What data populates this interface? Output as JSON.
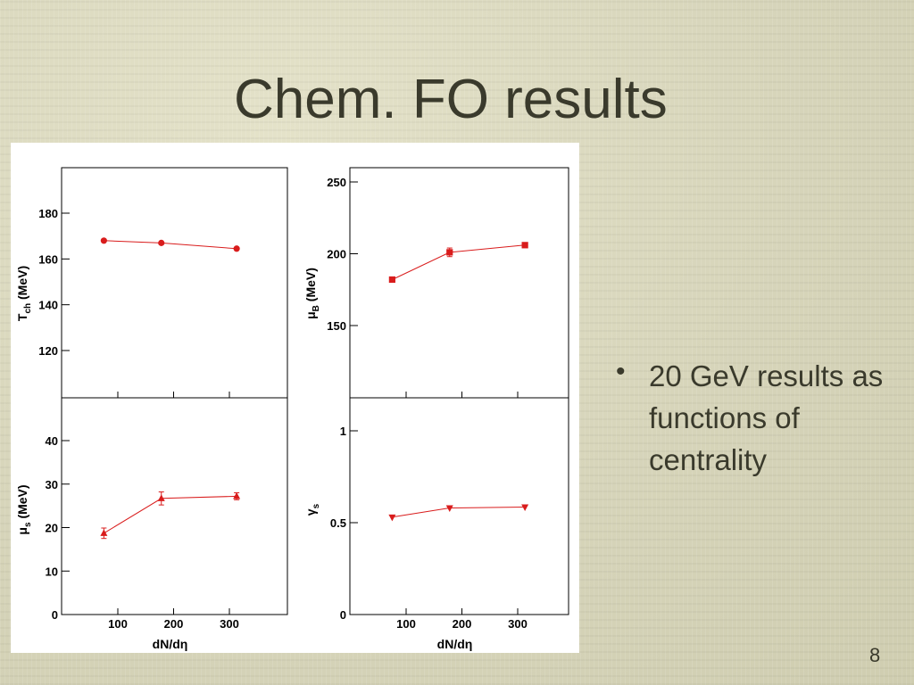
{
  "slide": {
    "title": "Chem. FO results",
    "bullet": "20 GeV results as functions of centrality",
    "page_number": "8"
  },
  "colors": {
    "series": "#d91c1c",
    "axis": "#000000",
    "text": "#3a3a2c"
  },
  "chart_data": [
    {
      "type": "line",
      "ylabel": "Tch (MeV)",
      "ylabel_main": "T",
      "ylabel_sub": "ch",
      "ylabel_unit": " (MeV)",
      "xlabel": "",
      "xlim": [
        0,
        400
      ],
      "ylim": [
        100,
        200
      ],
      "yticks": [
        120,
        140,
        160,
        180
      ],
      "xticks": [
        100,
        200,
        300
      ],
      "show_xtick_labels": false,
      "marker": "circle",
      "x": [
        75,
        178,
        313
      ],
      "y": [
        168,
        167,
        164.5
      ],
      "yerr": [
        0,
        0,
        0
      ]
    },
    {
      "type": "line",
      "ylabel": "μB (MeV)",
      "ylabel_main": "μ",
      "ylabel_sub": "B",
      "ylabel_unit": " (MeV)",
      "xlabel": "",
      "xlim": [
        0,
        400
      ],
      "ylim": [
        125,
        255
      ],
      "yticks": [
        150,
        200,
        250
      ],
      "xticks": [
        100,
        200,
        300
      ],
      "show_xtick_labels": false,
      "marker": "square",
      "x": [
        75,
        178,
        313
      ],
      "y": [
        182,
        201,
        206
      ],
      "yerr": [
        1.5,
        3,
        1.5
      ]
    },
    {
      "type": "line",
      "ylabel": "μs (MeV)",
      "ylabel_main": "μ",
      "ylabel_sub": "s",
      "ylabel_unit": " (MeV)",
      "xlabel": "dN/dη",
      "xlim": [
        0,
        400
      ],
      "ylim": [
        0,
        50
      ],
      "yticks": [
        0,
        10,
        20,
        30,
        40
      ],
      "xticks": [
        100,
        200,
        300
      ],
      "show_xtick_labels": true,
      "marker": "triangle-up",
      "x": [
        75,
        178,
        313
      ],
      "y": [
        18.7,
        26.7,
        27.2
      ],
      "yerr": [
        1.2,
        1.5,
        0.8
      ]
    },
    {
      "type": "line",
      "ylabel": "γs",
      "ylabel_main": "γ",
      "ylabel_sub": "s",
      "ylabel_unit": "",
      "xlabel": "dN/dη",
      "xlim": [
        0,
        400
      ],
      "ylim": [
        0,
        1.2
      ],
      "yticks": [
        0,
        0.5,
        1
      ],
      "xticks": [
        100,
        200,
        300
      ],
      "show_xtick_labels": true,
      "marker": "triangle-down",
      "x": [
        75,
        178,
        313
      ],
      "y": [
        0.53,
        0.58,
        0.585
      ],
      "yerr": [
        0,
        0,
        0
      ]
    }
  ]
}
